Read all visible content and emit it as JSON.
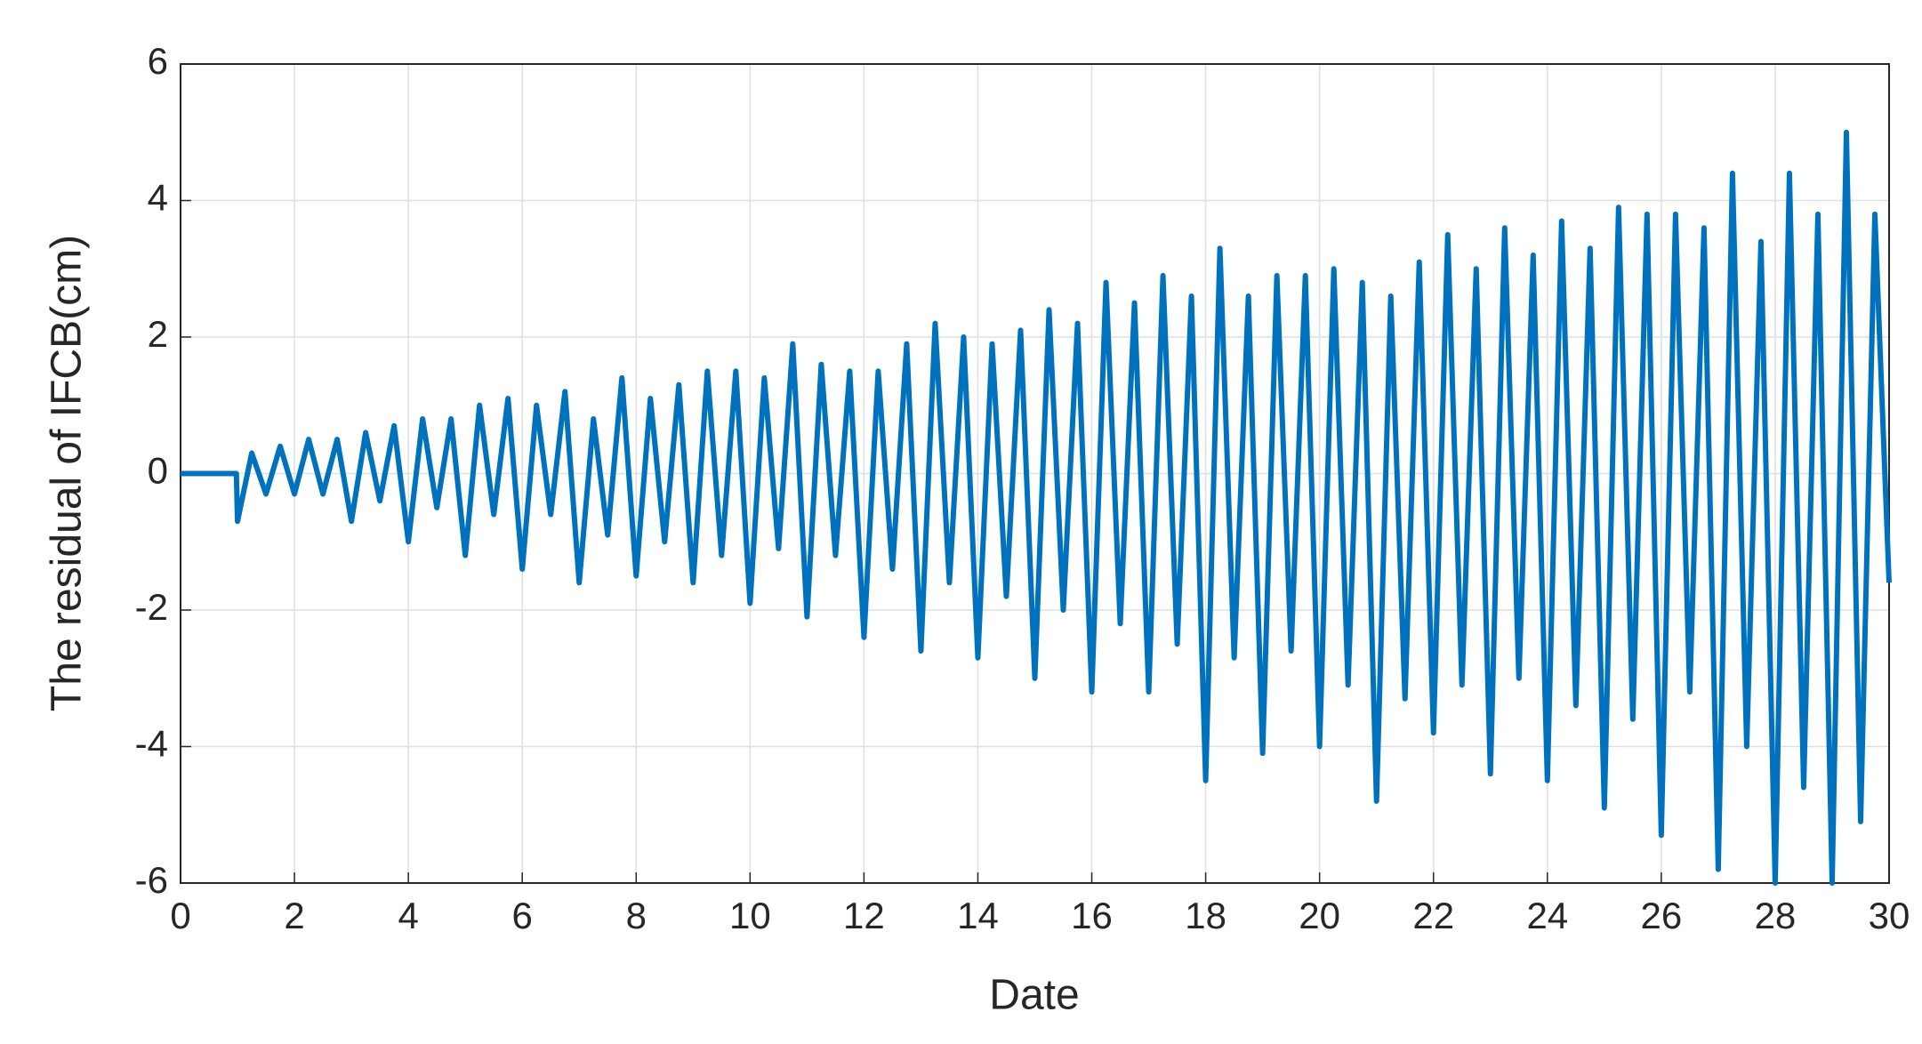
{
  "chart_data": {
    "type": "line",
    "xlabel": "Date",
    "ylabel": "The residual of IFCB(cm)",
    "xlim": [
      0,
      30
    ],
    "xticks": [
      0,
      2,
      4,
      6,
      8,
      10,
      12,
      14,
      16,
      18,
      20,
      22,
      24,
      26,
      28,
      30
    ],
    "ylim": [
      -6,
      6
    ],
    "yticks": [
      -6,
      -4,
      -2,
      0,
      2,
      4,
      6
    ],
    "grid": true,
    "series": [
      {
        "color": "#0072bd",
        "x": [
          0,
          0.98,
          1,
          1.25,
          1.5,
          1.75,
          2,
          2.25,
          2.5,
          2.75,
          3,
          3.25,
          3.5,
          3.75,
          4,
          4.25,
          4.5,
          4.75,
          5,
          5.25,
          5.5,
          5.75,
          6,
          6.25,
          6.5,
          6.75,
          7,
          7.25,
          7.5,
          7.75,
          8,
          8.25,
          8.5,
          8.75,
          9,
          9.25,
          9.5,
          9.75,
          10,
          10.25,
          10.5,
          10.75,
          11,
          11.25,
          11.5,
          11.75,
          12,
          12.25,
          12.5,
          12.75,
          13,
          13.25,
          13.5,
          13.75,
          14,
          14.25,
          14.5,
          14.75,
          15,
          15.25,
          15.5,
          15.75,
          16,
          16.25,
          16.5,
          16.75,
          17,
          17.25,
          17.5,
          17.75,
          18,
          18.25,
          18.5,
          18.75,
          19,
          19.25,
          19.5,
          19.75,
          20,
          20.25,
          20.5,
          20.75,
          21,
          21.25,
          21.5,
          21.75,
          22,
          22.25,
          22.5,
          22.75,
          23,
          23.25,
          23.5,
          23.75,
          24,
          24.25,
          24.5,
          24.75,
          25,
          25.25,
          25.5,
          25.75,
          26,
          26.25,
          26.5,
          26.75,
          27,
          27.25,
          27.5,
          27.75,
          28,
          28.25,
          28.5,
          28.75,
          29,
          29.25,
          29.5,
          29.75,
          30
        ],
        "values": [
          0,
          0,
          -0.7,
          0.3,
          -0.3,
          0.4,
          -0.3,
          0.5,
          -0.3,
          0.5,
          -0.7,
          0.6,
          -0.4,
          0.7,
          -1.0,
          0.8,
          -0.5,
          0.8,
          -1.2,
          1.0,
          -0.6,
          1.1,
          -1.4,
          1.0,
          -0.6,
          1.2,
          -1.6,
          0.8,
          -0.9,
          1.4,
          -1.5,
          1.1,
          -1.0,
          1.3,
          -1.6,
          1.5,
          -1.2,
          1.5,
          -1.9,
          1.4,
          -1.1,
          1.9,
          -2.1,
          1.6,
          -1.2,
          1.5,
          -2.4,
          1.5,
          -1.4,
          1.9,
          -2.6,
          2.2,
          -1.6,
          2.0,
          -2.7,
          1.9,
          -1.8,
          2.1,
          -3.0,
          2.4,
          -2.0,
          2.2,
          -3.2,
          2.8,
          -2.2,
          2.5,
          -3.2,
          2.9,
          -2.5,
          2.6,
          -4.5,
          3.3,
          -2.7,
          2.6,
          -4.1,
          2.9,
          -2.6,
          2.9,
          -4.0,
          3.0,
          -3.1,
          2.8,
          -4.8,
          2.6,
          -3.3,
          3.1,
          -3.8,
          3.5,
          -3.1,
          3.0,
          -4.4,
          3.6,
          -3.0,
          3.2,
          -4.5,
          3.7,
          -3.4,
          3.3,
          -4.9,
          3.9,
          -3.6,
          3.8,
          -5.3,
          3.8,
          -3.2,
          3.6,
          -5.8,
          4.4,
          -4.0,
          3.4,
          -6.0,
          4.4,
          -4.6,
          3.8,
          -6.0,
          5.0,
          -5.1,
          3.8,
          -1.6
        ]
      }
    ]
  }
}
